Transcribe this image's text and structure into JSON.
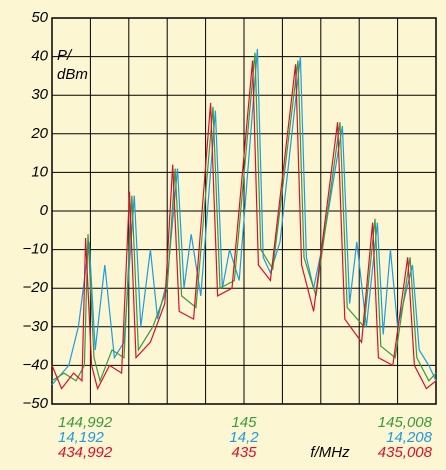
{
  "chart_data": {
    "type": "line",
    "ylabel_lines": [
      "P/",
      "dBm"
    ],
    "xlabel": "f/MHz",
    "ylim": [
      -50,
      50
    ],
    "yticks": [
      {
        "value": -50,
        "label": "−50"
      },
      {
        "value": -40,
        "label": "−40"
      },
      {
        "value": -30,
        "label": "−30"
      },
      {
        "value": -20,
        "label": "−20"
      },
      {
        "value": -10,
        "label": "−10"
      },
      0,
      10,
      20,
      30,
      40,
      50
    ],
    "xlim": [
      144.992,
      145.008
    ],
    "grid": true,
    "xgrid": [
      144.992,
      144.9936,
      144.9952,
      144.9968,
      144.9984,
      145,
      145.0016,
      145.0032,
      145.0048,
      145.0064,
      145.008
    ],
    "x_axes": [
      {
        "color": "#3a9a3a",
        "xticks": [
          {
            "value": 144.992,
            "label": "144,992"
          },
          145,
          {
            "value": 145.008,
            "label": "145,008"
          }
        ]
      },
      {
        "color": "#1e9be0",
        "xticks": [
          {
            "value": 144.992,
            "label": "14,192"
          },
          {
            "value": 145,
            "label": "14,2"
          },
          {
            "value": 145.008,
            "label": "14,208"
          }
        ]
      },
      {
        "color": "#d8102a",
        "xticks": [
          {
            "value": 144.992,
            "label": "434,992"
          },
          {
            "value": 145,
            "label": "435"
          },
          {
            "value": 145.008,
            "label": "435,008"
          }
        ]
      }
    ],
    "series": [
      {
        "color": "#1e9be0",
        "x": [
          144.992,
          144.9927,
          144.9931,
          144.99355,
          144.9938,
          144.9942,
          144.9946,
          144.995,
          144.99543,
          144.9957,
          144.9961,
          144.9964,
          144.9968,
          144.99723,
          144.9975,
          144.9978,
          144.9982,
          144.99881,
          144.9991,
          144.9994,
          144.9998,
          145.00056,
          145.0008,
          145.0011,
          145.0015,
          145.00235,
          145.0026,
          145.0029,
          145.0033,
          145.0041,
          145.0044,
          145.0047,
          145.0051,
          145.00556,
          145.0058,
          145.0061,
          145.0064,
          145.00702,
          145.0073,
          145.0077,
          145.008
        ],
        "values": [
          -45,
          -40,
          -30,
          -8,
          -36,
          -14,
          -38,
          -34,
          4,
          -30,
          -10,
          -28,
          -18,
          11,
          -20,
          -6,
          -22,
          26,
          -20,
          -10,
          -18,
          42,
          -12,
          -16,
          -8,
          40,
          -12,
          -20,
          -8,
          22,
          -24,
          -8,
          -30,
          -3,
          -32,
          -10,
          -30,
          -14,
          -36,
          -40,
          -44
        ]
      },
      {
        "color": "#3a9a3a",
        "x": [
          144.992,
          144.9925,
          144.993,
          144.99335,
          144.9935,
          144.99375,
          144.994,
          144.9945,
          144.995,
          144.99533,
          144.9956,
          144.9962,
          144.9968,
          144.99713,
          144.9974,
          144.998,
          144.99871,
          144.999,
          144.9996,
          145.00046,
          145.0007,
          145.0012,
          145.00225,
          145.0025,
          145.003,
          145.004,
          145.0043,
          145.005,
          145.00546,
          145.0057,
          145.0063,
          145.00692,
          145.0072,
          145.0077,
          145.008
        ],
        "values": [
          -44,
          -42,
          -44,
          -40,
          -6,
          -38,
          -44,
          -36,
          -38,
          4,
          -36,
          -30,
          -20,
          11,
          -22,
          -25,
          27,
          -20,
          -18,
          41,
          -10,
          -15,
          39,
          -12,
          -22,
          23,
          -25,
          -30,
          -2,
          -35,
          -38,
          -12,
          -38,
          -44,
          -42
        ]
      },
      {
        "color": "#d8102a",
        "x": [
          144.992,
          144.9924,
          144.9929,
          144.99325,
          144.9934,
          144.99365,
          144.9939,
          144.9944,
          144.9949,
          144.99523,
          144.9955,
          144.9961,
          144.9967,
          144.99703,
          144.9973,
          144.9979,
          144.99861,
          144.9989,
          144.9995,
          145.00036,
          145.0006,
          145.0011,
          145.00215,
          145.0024,
          145.0029,
          145.0039,
          145.0042,
          145.0049,
          145.00536,
          145.0056,
          145.0062,
          145.00682,
          145.0071,
          145.0076,
          145.008
        ],
        "values": [
          -40,
          -46,
          -42,
          -44,
          -7,
          -40,
          -46,
          -40,
          -42,
          5,
          -38,
          -34,
          -24,
          12,
          -26,
          -28,
          28,
          -22,
          -20,
          39,
          -14,
          -18,
          38,
          -14,
          -26,
          23,
          -28,
          -34,
          -3,
          -38,
          -40,
          -12,
          -40,
          -46,
          -44
        ]
      }
    ]
  }
}
